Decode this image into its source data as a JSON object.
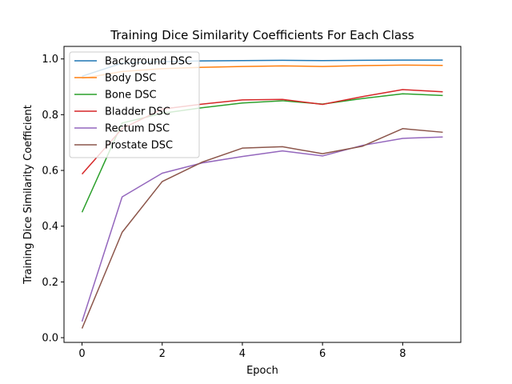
{
  "chart_data": {
    "type": "line",
    "title": "Training Dice Similarity Coefficients For Each Class",
    "xlabel": "Epoch",
    "ylabel": "Training Dice Similarity Coefficient",
    "xlim": [
      -0.45,
      9.45
    ],
    "ylim": [
      -0.017,
      1.045
    ],
    "xticks": [
      0,
      2,
      4,
      6,
      8
    ],
    "yticks": [
      0.0,
      0.2,
      0.4,
      0.6,
      0.8,
      1.0
    ],
    "xtick_labels": [
      "0",
      "2",
      "4",
      "6",
      "8"
    ],
    "ytick_labels": [
      "0.0",
      "0.2",
      "0.4",
      "0.6",
      "0.8",
      "1.0"
    ],
    "grid": false,
    "legend_position": "upper-left",
    "x": [
      0,
      1,
      2,
      3,
      4,
      5,
      6,
      7,
      8,
      9
    ],
    "series": [
      {
        "name": "Background DSC",
        "color": "#1f77b4",
        "values": [
          0.938,
          0.985,
          0.99,
          0.993,
          0.994,
          0.995,
          0.994,
          0.995,
          0.996,
          0.996
        ]
      },
      {
        "name": "Body DSC",
        "color": "#ff7f0e",
        "values": [
          0.93,
          0.955,
          0.965,
          0.97,
          0.973,
          0.975,
          0.973,
          0.976,
          0.978,
          0.977
        ]
      },
      {
        "name": "Bone DSC",
        "color": "#2ca02c",
        "values": [
          0.45,
          0.77,
          0.805,
          0.825,
          0.842,
          0.85,
          0.838,
          0.858,
          0.875,
          0.869
        ]
      },
      {
        "name": "Bladder DSC",
        "color": "#d62728",
        "values": [
          0.587,
          0.75,
          0.82,
          0.838,
          0.853,
          0.855,
          0.837,
          0.865,
          0.89,
          0.882
        ]
      },
      {
        "name": "Rectum DSC",
        "color": "#9467bd",
        "values": [
          0.058,
          0.505,
          0.59,
          0.627,
          0.65,
          0.67,
          0.652,
          0.69,
          0.715,
          0.72
        ]
      },
      {
        "name": "Prostate DSC",
        "color": "#8c564b",
        "values": [
          0.033,
          0.378,
          0.56,
          0.63,
          0.68,
          0.685,
          0.66,
          0.687,
          0.75,
          0.737
        ]
      }
    ]
  }
}
